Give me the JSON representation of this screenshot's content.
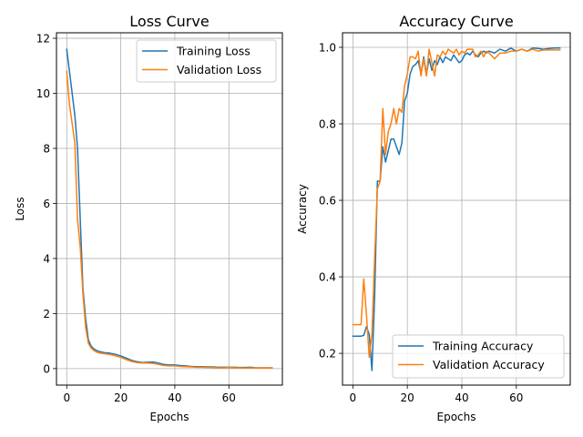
{
  "chart_data": [
    {
      "type": "line",
      "title": "Loss Curve",
      "xlabel": "Epochs",
      "ylabel": "Loss",
      "xlim": [
        -3.8,
        79.8
      ],
      "ylim": [
        -0.6,
        12.2
      ],
      "xticks": [
        0,
        20,
        40,
        60
      ],
      "yticks": [
        0,
        2,
        4,
        6,
        8,
        10,
        12
      ],
      "ytick_decimals": 0,
      "grid": true,
      "legend_position": "top-right",
      "series": [
        {
          "name": "Training Loss",
          "color": "#1f77b4",
          "x": [
            0,
            1,
            2,
            3,
            4,
            5,
            6,
            7,
            8,
            9,
            10,
            11,
            12,
            14,
            16,
            18,
            20,
            22,
            24,
            26,
            28,
            30,
            32,
            34,
            36,
            38,
            40,
            42,
            44,
            46,
            48,
            50,
            52,
            54,
            56,
            58,
            60,
            62,
            64,
            66,
            68,
            70,
            72,
            74,
            76
          ],
          "y": [
            11.6,
            10.8,
            10.0,
            9.2,
            8.0,
            5.4,
            2.9,
            1.8,
            1.05,
            0.82,
            0.72,
            0.66,
            0.62,
            0.58,
            0.56,
            0.52,
            0.46,
            0.38,
            0.3,
            0.25,
            0.22,
            0.23,
            0.24,
            0.2,
            0.15,
            0.13,
            0.13,
            0.11,
            0.1,
            0.08,
            0.07,
            0.07,
            0.06,
            0.06,
            0.05,
            0.05,
            0.05,
            0.05,
            0.04,
            0.04,
            0.05,
            0.03,
            0.03,
            0.03,
            0.03
          ]
        },
        {
          "name": "Validation Loss",
          "color": "#ff7f0e",
          "x": [
            0,
            1,
            2,
            3,
            4,
            5,
            6,
            7,
            8,
            9,
            10,
            11,
            12,
            14,
            16,
            18,
            20,
            22,
            24,
            26,
            28,
            30,
            32,
            34,
            36,
            38,
            40,
            42,
            44,
            46,
            48,
            50,
            52,
            54,
            56,
            58,
            60,
            62,
            64,
            66,
            68,
            70,
            72,
            74,
            76
          ],
          "y": [
            10.8,
            9.6,
            8.9,
            8.2,
            5.4,
            4.4,
            2.7,
            1.5,
            0.92,
            0.75,
            0.66,
            0.6,
            0.57,
            0.54,
            0.51,
            0.46,
            0.41,
            0.33,
            0.26,
            0.22,
            0.2,
            0.2,
            0.19,
            0.15,
            0.11,
            0.1,
            0.1,
            0.08,
            0.07,
            0.06,
            0.05,
            0.05,
            0.04,
            0.04,
            0.03,
            0.03,
            0.04,
            0.03,
            0.03,
            0.02,
            0.03,
            0.02,
            0.02,
            0.02,
            0.02
          ]
        }
      ]
    },
    {
      "type": "line",
      "title": "Accuracy Curve",
      "xlabel": "Epochs",
      "ylabel": "Accuracy",
      "xlim": [
        -3.8,
        79.8
      ],
      "ylim": [
        0.117,
        1.038
      ],
      "xticks": [
        0,
        20,
        40,
        60
      ],
      "yticks": [
        0.2,
        0.4,
        0.6,
        0.8,
        1.0
      ],
      "ytick_decimals": 1,
      "grid": true,
      "legend_position": "lower-right",
      "series": [
        {
          "name": "Training Accuracy",
          "color": "#1f77b4",
          "x": [
            0,
            1,
            2,
            3,
            4,
            5,
            6,
            7,
            8,
            9,
            10,
            11,
            12,
            13,
            14,
            15,
            16,
            17,
            18,
            19,
            20,
            21,
            22,
            23,
            24,
            25,
            26,
            27,
            28,
            29,
            30,
            31,
            32,
            33,
            34,
            35,
            36,
            37,
            38,
            39,
            40,
            41,
            42,
            43,
            44,
            45,
            46,
            47,
            48,
            49,
            50,
            52,
            54,
            56,
            58,
            60,
            62,
            64,
            66,
            68,
            70,
            72,
            74,
            76
          ],
          "y": [
            0.245,
            0.245,
            0.245,
            0.245,
            0.247,
            0.27,
            0.25,
            0.155,
            0.35,
            0.65,
            0.65,
            0.74,
            0.7,
            0.73,
            0.76,
            0.76,
            0.74,
            0.72,
            0.75,
            0.86,
            0.88,
            0.93,
            0.95,
            0.955,
            0.965,
            0.93,
            0.975,
            0.93,
            0.97,
            0.94,
            0.965,
            0.955,
            0.975,
            0.96,
            0.975,
            0.97,
            0.965,
            0.98,
            0.97,
            0.96,
            0.965,
            0.98,
            0.985,
            0.98,
            0.99,
            0.98,
            0.975,
            0.985,
            0.99,
            0.985,
            0.99,
            0.985,
            0.995,
            0.99,
            0.998,
            0.99,
            0.995,
            0.99,
            0.998,
            0.997,
            0.995,
            0.997,
            0.998,
            0.998
          ]
        },
        {
          "name": "Validation Accuracy",
          "color": "#ff7f0e",
          "x": [
            0,
            1,
            2,
            3,
            4,
            5,
            6,
            7,
            8,
            9,
            10,
            11,
            12,
            13,
            14,
            15,
            16,
            17,
            18,
            19,
            20,
            21,
            22,
            23,
            24,
            25,
            26,
            27,
            28,
            29,
            30,
            31,
            32,
            33,
            34,
            35,
            36,
            37,
            38,
            39,
            40,
            41,
            42,
            43,
            44,
            45,
            46,
            47,
            48,
            49,
            50,
            52,
            54,
            56,
            58,
            60,
            62,
            64,
            66,
            68,
            70,
            72,
            74,
            76
          ],
          "y": [
            0.275,
            0.275,
            0.275,
            0.275,
            0.395,
            0.3,
            0.19,
            0.25,
            0.45,
            0.63,
            0.65,
            0.84,
            0.72,
            0.78,
            0.8,
            0.84,
            0.8,
            0.84,
            0.83,
            0.9,
            0.93,
            0.975,
            0.975,
            0.97,
            0.99,
            0.925,
            0.97,
            0.925,
            0.995,
            0.96,
            0.925,
            0.98,
            0.975,
            0.99,
            0.98,
            0.995,
            0.99,
            0.985,
            0.995,
            0.98,
            0.99,
            0.985,
            0.995,
            0.995,
            0.995,
            0.975,
            0.98,
            0.99,
            0.975,
            0.99,
            0.985,
            0.97,
            0.985,
            0.985,
            0.99,
            0.99,
            0.995,
            0.99,
            0.995,
            0.99,
            0.993,
            0.993,
            0.993,
            0.993
          ]
        }
      ]
    }
  ]
}
